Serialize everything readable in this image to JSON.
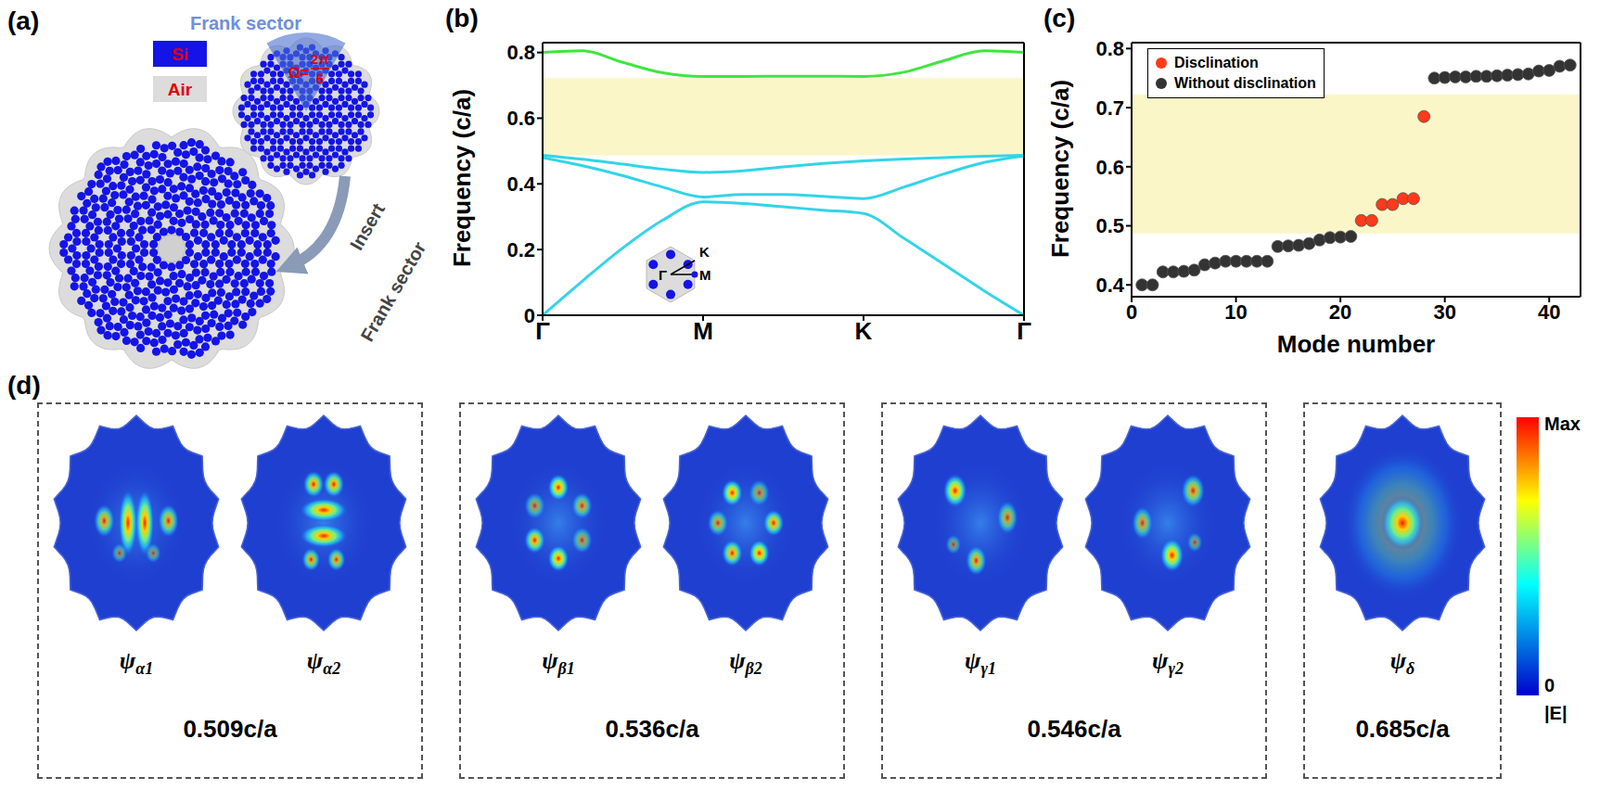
{
  "diagram": {
    "panel": "(a)",
    "title": "Frank sector",
    "angle": {
      "symbol": "Ω=",
      "numerator": "2π",
      "denominator": "6"
    },
    "materials": [
      {
        "name": "Si",
        "color": "#1414e6"
      },
      {
        "name": "Air",
        "color": "#dcdcdc"
      }
    ],
    "arrow_labels": [
      "Insert",
      "Frank sector"
    ]
  },
  "chart_data": [
    {
      "panel": "(b)",
      "type": "line",
      "y_label": "Frequency (c/a)",
      "x": [
        0,
        0.25,
        0.5,
        0.75,
        1,
        1.25,
        1.5,
        1.75,
        2,
        2.25,
        2.5,
        2.75,
        3
      ],
      "xlim": [
        0,
        3
      ],
      "xticks": [
        {
          "value": 0,
          "label": "Γ"
        },
        {
          "value": 1,
          "label": "M"
        },
        {
          "value": 2,
          "label": "K"
        },
        {
          "value": 3,
          "label": "Γ"
        }
      ],
      "ylim": [
        0,
        0.83
      ],
      "yticks": [
        0,
        0.2,
        0.4,
        0.6,
        0.8
      ],
      "band_gap": [
        0.487,
        0.722
      ],
      "inset_labels": [
        "Γ",
        "M",
        "K"
      ],
      "series": [
        {
          "color": "#33d4e8",
          "values": [
            0,
            0.105,
            0.205,
            0.29,
            0.345,
            0.34,
            0.33,
            0.32,
            0.31,
            0.235,
            0.155,
            0.075,
            0
          ]
        },
        {
          "color": "#33d4e8",
          "values": [
            0.48,
            0.455,
            0.425,
            0.39,
            0.36,
            0.368,
            0.368,
            0.362,
            0.355,
            0.39,
            0.43,
            0.465,
            0.485
          ]
        },
        {
          "color": "#33d4e8",
          "values": [
            0.487,
            0.475,
            0.46,
            0.445,
            0.435,
            0.44,
            0.452,
            0.462,
            0.47,
            0.476,
            0.48,
            0.484,
            0.487
          ]
        },
        {
          "color": "#3ee63e",
          "values": [
            0.8,
            0.805,
            0.77,
            0.738,
            0.727,
            0.727,
            0.728,
            0.728,
            0.727,
            0.74,
            0.775,
            0.805,
            0.8
          ]
        }
      ]
    },
    {
      "panel": "(c)",
      "type": "scatter",
      "x_label": "Mode number",
      "y_label": "Frequency (c/a)",
      "xlim": [
        0,
        43
      ],
      "xticks": [
        0,
        10,
        20,
        30,
        40
      ],
      "ylim": [
        0.38,
        0.81
      ],
      "yticks": [
        0.4,
        0.5,
        0.6,
        0.7,
        0.8
      ],
      "band_gap": [
        0.487,
        0.722
      ],
      "legend": "upper left",
      "series": [
        {
          "name": "Disclination",
          "color": "#ff3a1a",
          "marker": "circle",
          "x": [
            22,
            23,
            24,
            25,
            26,
            27,
            28
          ],
          "values": [
            0.509,
            0.509,
            0.536,
            0.536,
            0.546,
            0.546,
            0.685
          ]
        },
        {
          "name": "Without disclination",
          "color": "#333333",
          "marker": "circle",
          "x": [
            1,
            2,
            3,
            4,
            5,
            6,
            7,
            8,
            9,
            10,
            11,
            12,
            13,
            14,
            15,
            16,
            17,
            18,
            19,
            20,
            21,
            29,
            30,
            31,
            32,
            33,
            34,
            35,
            36,
            37,
            38,
            39,
            40,
            41,
            42
          ],
          "values": [
            0.4,
            0.4,
            0.422,
            0.422,
            0.423,
            0.425,
            0.434,
            0.437,
            0.44,
            0.44,
            0.44,
            0.44,
            0.44,
            0.465,
            0.466,
            0.467,
            0.47,
            0.476,
            0.48,
            0.481,
            0.482,
            0.75,
            0.751,
            0.752,
            0.752,
            0.753,
            0.753,
            0.754,
            0.755,
            0.756,
            0.757,
            0.762,
            0.763,
            0.77,
            0.772
          ]
        }
      ]
    }
  ],
  "field_maps": {
    "panel": "(d)",
    "groups": [
      {
        "label": "0.509c/a",
        "modes": [
          "ψα1",
          "ψα2"
        ]
      },
      {
        "label": "0.536c/a",
        "modes": [
          "ψβ1",
          "ψβ2"
        ]
      },
      {
        "label": "0.546c/a",
        "modes": [
          "ψγ1",
          "ψγ2"
        ]
      },
      {
        "label": "0.685c/a",
        "modes": [
          "ψδ"
        ]
      }
    ],
    "colorbar": {
      "max": "Max",
      "min": "0",
      "title": "|E|"
    }
  }
}
